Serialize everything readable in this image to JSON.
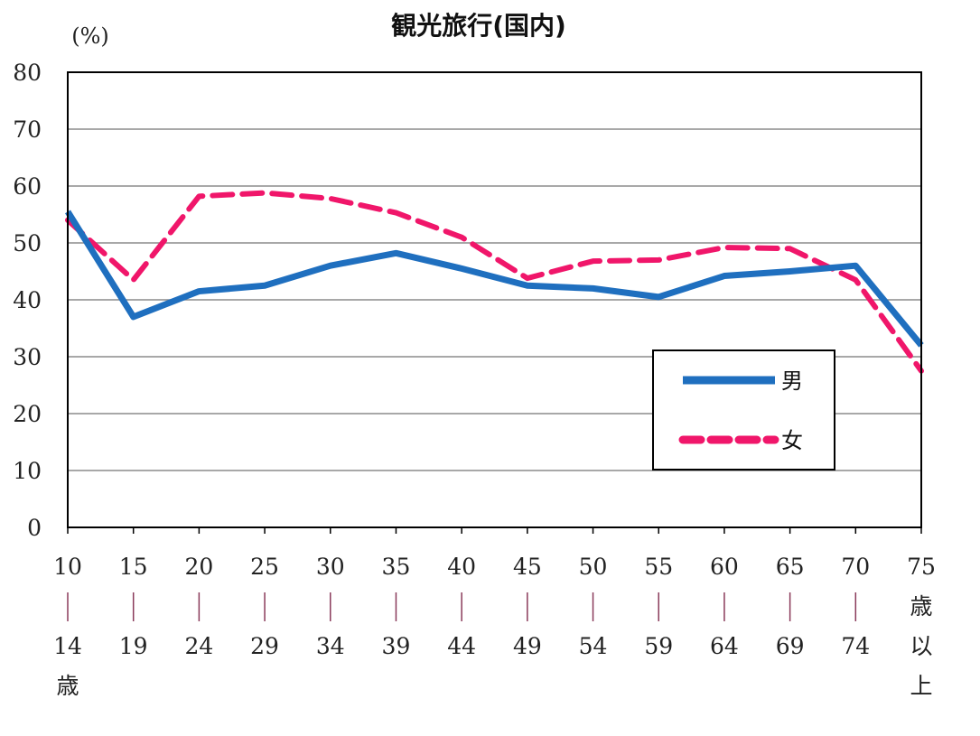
{
  "chart_data": {
    "type": "line",
    "title": "観光旅行(国内)",
    "y_unit": "(%)",
    "ylim": [
      0,
      80
    ],
    "y_ticks": [
      0,
      10,
      20,
      30,
      40,
      50,
      60,
      70,
      80
    ],
    "grid": true,
    "legend_position": "bottom-right",
    "categories": [
      [
        "10",
        "|",
        "14",
        "歳"
      ],
      [
        "15",
        "|",
        "19"
      ],
      [
        "20",
        "|",
        "24"
      ],
      [
        "25",
        "|",
        "29"
      ],
      [
        "30",
        "|",
        "34"
      ],
      [
        "35",
        "|",
        "39"
      ],
      [
        "40",
        "|",
        "44"
      ],
      [
        "45",
        "|",
        "49"
      ],
      [
        "50",
        "|",
        "54"
      ],
      [
        "55",
        "|",
        "59"
      ],
      [
        "60",
        "|",
        "64"
      ],
      [
        "65",
        "|",
        "69"
      ],
      [
        "70",
        "|",
        "74"
      ],
      [
        "75",
        "歳",
        "以",
        "上"
      ]
    ],
    "series": [
      {
        "name": "男",
        "color": "#1f6fbf",
        "style": "solid",
        "values": [
          55.5,
          37.0,
          41.5,
          42.5,
          46.0,
          48.2,
          45.5,
          42.5,
          42.0,
          40.5,
          44.2,
          45.0,
          46.0,
          32.0
        ]
      },
      {
        "name": "女",
        "color": "#f0166a",
        "style": "dashed",
        "values": [
          54.0,
          43.5,
          58.2,
          58.8,
          57.8,
          55.3,
          51.0,
          43.8,
          46.8,
          47.0,
          49.2,
          49.0,
          43.5,
          27.5
        ]
      }
    ]
  }
}
